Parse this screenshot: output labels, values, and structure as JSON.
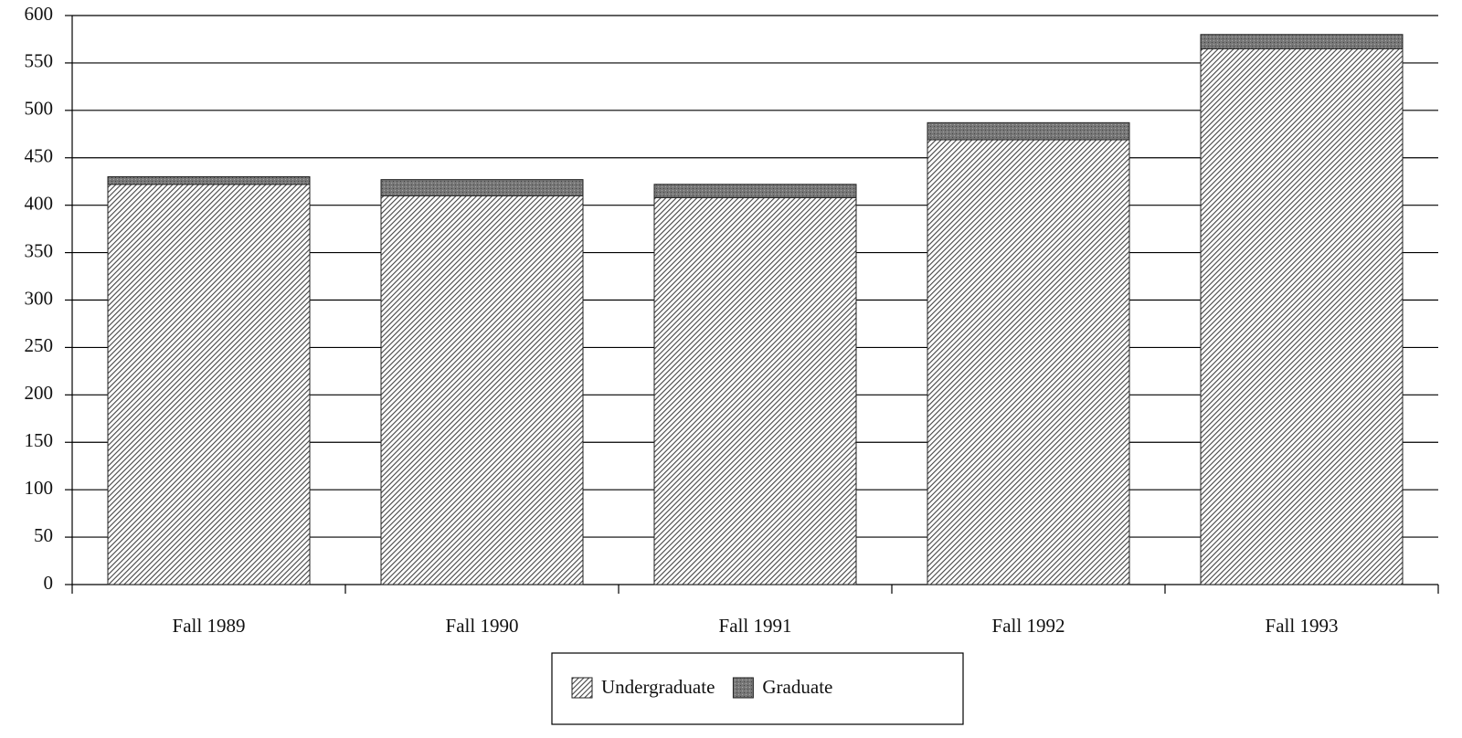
{
  "chart_data": {
    "type": "stacked_bar",
    "categories": [
      "Fall 1989",
      "Fall 1990",
      "Fall 1991",
      "Fall 1992",
      "Fall 1993"
    ],
    "series": [
      {
        "name": "Undergraduate",
        "color": "#444444",
        "values": [
          422,
          410,
          408,
          469,
          565
        ]
      },
      {
        "name": "Graduate",
        "color": "#777777",
        "values": [
          8,
          17,
          14,
          18,
          15
        ]
      }
    ],
    "ylim": [
      0,
      600
    ],
    "yticks": [
      0,
      50,
      100,
      150,
      200,
      250,
      300,
      350,
      400,
      450,
      500,
      550,
      600
    ],
    "grid": true,
    "legend": "bottom"
  }
}
